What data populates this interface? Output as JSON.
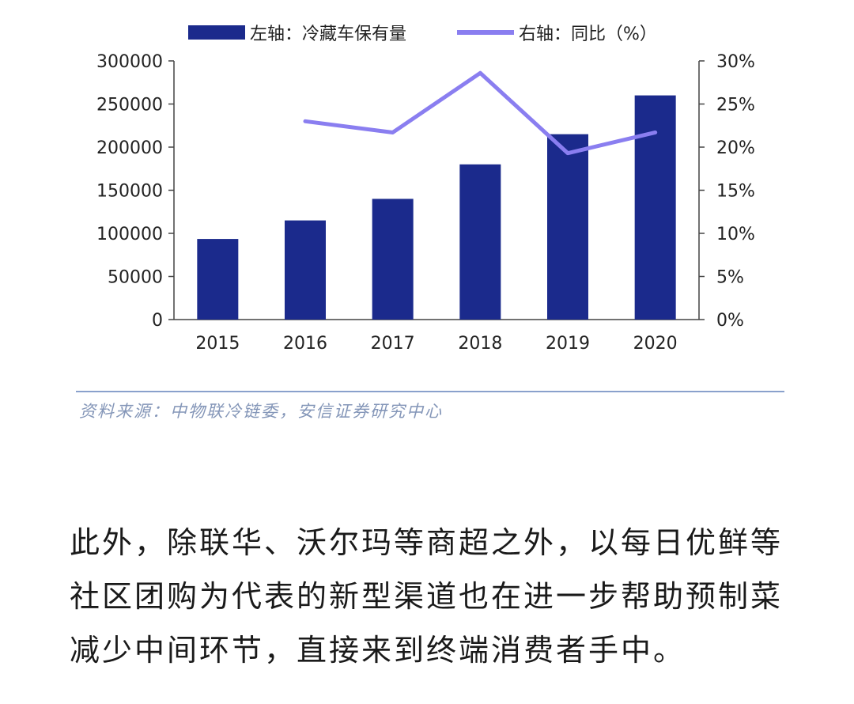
{
  "chart_data": {
    "type": "bar",
    "categories": [
      "2015",
      "2016",
      "2017",
      "2018",
      "2019",
      "2020"
    ],
    "series": [
      {
        "name": "左轴：冷藏车保有量",
        "type": "bar",
        "axis": "left",
        "color": "#1b2a8c",
        "values": [
          93500,
          115000,
          140000,
          180000,
          215000,
          260000
        ]
      },
      {
        "name": "右轴：同比（%）",
        "type": "line",
        "axis": "right",
        "color": "#8a7ef0",
        "values": [
          null,
          23.0,
          21.7,
          28.6,
          19.3,
          21.7
        ]
      }
    ],
    "left_axis": {
      "ylim": [
        0,
        300000
      ],
      "ticks": [
        "0",
        "50000",
        "100000",
        "150000",
        "200000",
        "250000",
        "300000"
      ]
    },
    "right_axis": {
      "ylim": [
        0,
        30
      ],
      "ticks": [
        "0%",
        "5%",
        "10%",
        "15%",
        "20%",
        "25%",
        "30%"
      ]
    },
    "legend_position": "top",
    "grid": false
  },
  "source": "资料来源：中物联冷链委，安信证券研究中心",
  "article": {
    "paragraph": "此外，除联华、沃尔玛等商超之外，以每日优鲜等社区团购为代表的新型渠道也在进一步帮助预制菜减少中间环节，直接来到终端消费者手中。"
  }
}
